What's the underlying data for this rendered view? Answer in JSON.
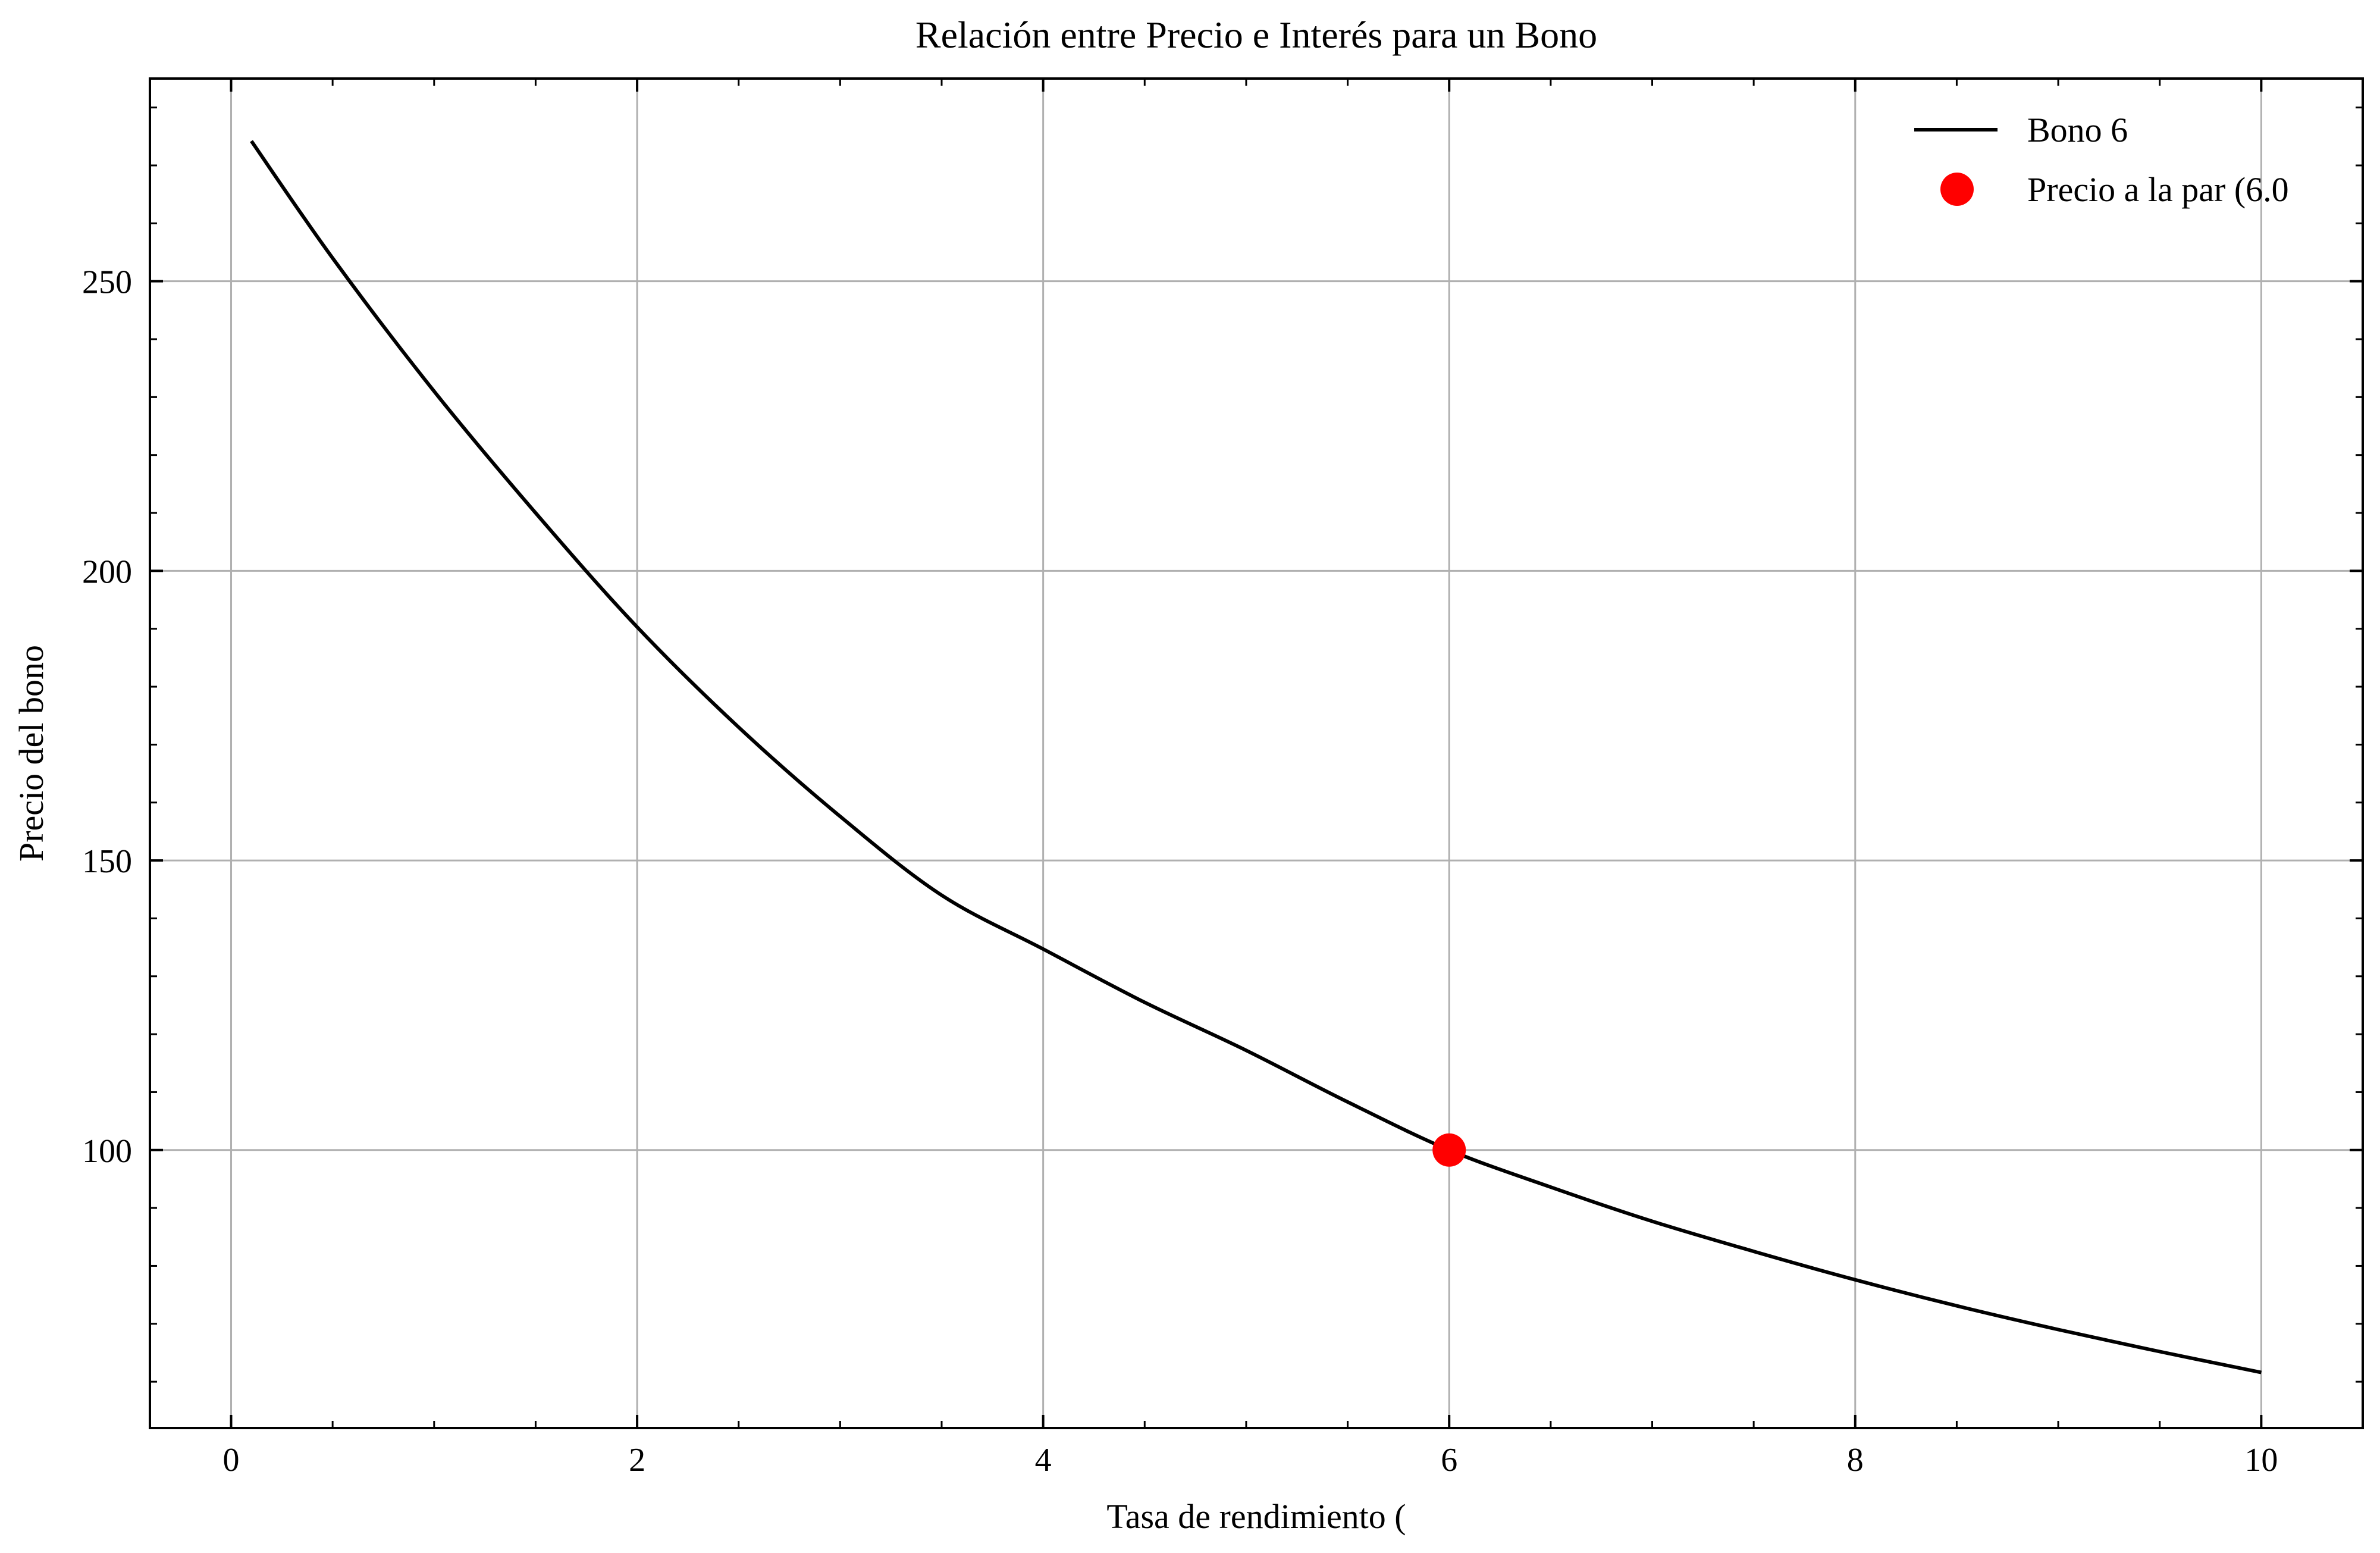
{
  "chart_data": {
    "type": "line",
    "title": "Relación entre Precio e Interés para un Bono",
    "xlabel": "Tasa de rendimiento (",
    "ylabel": "Precio del bono",
    "xlim": [
      -0.4,
      10.5
    ],
    "ylim": [
      52,
      285
    ],
    "x_ticks": [
      0,
      2,
      4,
      6,
      8,
      10
    ],
    "y_ticks": [
      100,
      150,
      200,
      250
    ],
    "grid": true,
    "legend_position": "top-right",
    "series": [
      {
        "name": "Bono 6",
        "type": "line",
        "color": "#000000",
        "x": [
          0.1,
          0.5,
          1.0,
          1.5,
          2.0,
          2.5,
          3.0,
          3.5,
          4.0,
          4.5,
          5.0,
          5.5,
          6.0,
          6.5,
          7.0,
          7.5,
          8.0,
          8.5,
          9.0,
          9.5,
          10.0
        ],
        "y": [
          274.2,
          254.0,
          231.0,
          210.0,
          190.3,
          173.0,
          157.6,
          144.0,
          134.7,
          125.5,
          117.2,
          108.3,
          100.0,
          93.6,
          87.7,
          82.5,
          77.6,
          73.1,
          69.0,
          65.2,
          61.6
        ]
      },
      {
        "name": "Precio a la par (6.0",
        "type": "scatter",
        "color": "#ff0000",
        "x": [
          6.0
        ],
        "y": [
          100.0
        ]
      }
    ]
  }
}
